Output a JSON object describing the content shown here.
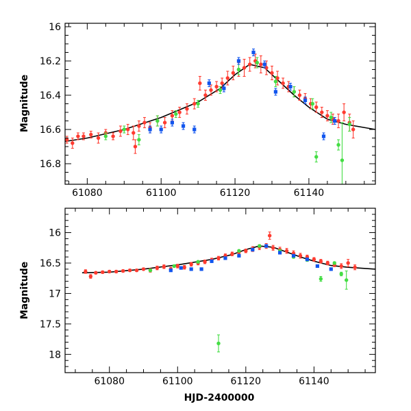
{
  "colors": {
    "red": "#ff3b30",
    "green": "#44dd44",
    "blue": "#1155ee",
    "model": "#000000",
    "frame": "#000000"
  },
  "chart_data": [
    {
      "type": "scatter",
      "panel": "top",
      "xlabel": "",
      "ylabel": "Magnitude",
      "xlim": [
        61074,
        61158
      ],
      "ylim": [
        16.92,
        15.98
      ],
      "y_inverted": true,
      "xticks": [
        61080,
        61100,
        61120,
        61140
      ],
      "yticks": [
        16,
        16.2,
        16.4,
        16.6,
        16.8
      ],
      "ytick_labels": [
        "16",
        "16.2",
        "16.4",
        "16.6",
        "16.8"
      ],
      "model": {
        "x": [
          61074,
          61080,
          61090,
          61100,
          61110,
          61116,
          61120,
          61124,
          61128,
          61132,
          61136,
          61140,
          61145,
          61150,
          61158
        ],
        "y": [
          16.67,
          16.65,
          16.6,
          16.53,
          16.44,
          16.36,
          16.28,
          16.22,
          16.24,
          16.32,
          16.4,
          16.47,
          16.54,
          16.57,
          16.6
        ]
      },
      "series": [
        {
          "name": "red",
          "x": [
            61074.5,
            61076,
            61077.5,
            61079,
            61081,
            61083,
            61085,
            61087,
            61089,
            61091,
            61092.5,
            61094,
            61095.5,
            61097,
            61099,
            61101,
            61103,
            61105,
            61107,
            61109,
            61110.5,
            61112,
            61113.5,
            61115,
            61116.5,
            61118,
            61119.5,
            61121,
            61122.5,
            61124,
            61125.5,
            61127,
            61128.5,
            61130,
            61131.5,
            61133,
            61134.5,
            61136,
            61137.5,
            61139,
            61140.5,
            61142,
            61143.5,
            61145,
            61146.5,
            61148,
            61149.5,
            61151,
            61152,
            61093
          ],
          "y": [
            16.66,
            16.68,
            16.64,
            16.64,
            16.63,
            16.65,
            16.62,
            16.64,
            16.61,
            16.6,
            16.62,
            16.58,
            16.56,
            16.59,
            16.55,
            16.56,
            16.52,
            16.5,
            16.48,
            16.45,
            16.33,
            16.4,
            16.37,
            16.35,
            16.33,
            16.3,
            16.27,
            16.25,
            16.24,
            16.22,
            16.2,
            16.22,
            16.24,
            16.27,
            16.3,
            16.33,
            16.35,
            16.38,
            16.4,
            16.42,
            16.45,
            16.47,
            16.5,
            16.52,
            16.54,
            16.55,
            16.5,
            16.56,
            16.6,
            16.7
          ],
          "err": [
            0.02,
            0.03,
            0.02,
            0.02,
            0.02,
            0.03,
            0.02,
            0.02,
            0.03,
            0.03,
            0.04,
            0.03,
            0.03,
            0.03,
            0.03,
            0.03,
            0.03,
            0.03,
            0.03,
            0.03,
            0.04,
            0.03,
            0.03,
            0.03,
            0.03,
            0.04,
            0.04,
            0.04,
            0.05,
            0.04,
            0.04,
            0.05,
            0.04,
            0.04,
            0.04,
            0.03,
            0.03,
            0.03,
            0.03,
            0.03,
            0.03,
            0.03,
            0.03,
            0.03,
            0.03,
            0.04,
            0.05,
            0.05,
            0.05,
            0.04
          ]
        },
        {
          "name": "green",
          "x": [
            61085,
            61090,
            61094,
            61099,
            61104,
            61110,
            61116,
            61121,
            61126,
            61131,
            61136,
            61141,
            61142,
            61146,
            61148,
            61149,
            61151
          ],
          "y": [
            16.64,
            16.6,
            16.66,
            16.55,
            16.51,
            16.45,
            16.37,
            16.25,
            16.21,
            16.32,
            16.38,
            16.45,
            16.76,
            16.53,
            16.69,
            16.78,
            16.57
          ],
          "err": [
            0.02,
            0.02,
            0.03,
            0.03,
            0.02,
            0.02,
            0.02,
            0.03,
            0.03,
            0.03,
            0.03,
            0.03,
            0.03,
            0.03,
            0.03,
            0.22,
            0.04
          ]
        },
        {
          "name": "blue",
          "x": [
            61097,
            61100,
            61103,
            61106,
            61109,
            61113,
            61117,
            61121,
            61125,
            61128,
            61131,
            61135,
            61139,
            61144,
            61147
          ],
          "y": [
            16.6,
            16.6,
            16.56,
            16.58,
            16.6,
            16.33,
            16.36,
            16.2,
            16.15,
            16.22,
            16.38,
            16.35,
            16.43,
            16.64,
            16.55
          ],
          "err": [
            0.02,
            0.02,
            0.02,
            0.02,
            0.02,
            0.02,
            0.02,
            0.02,
            0.02,
            0.02,
            0.02,
            0.02,
            0.02,
            0.02,
            0.02
          ]
        }
      ]
    },
    {
      "type": "scatter",
      "panel": "bottom",
      "xlabel": "HJD-2400000",
      "ylabel": "Magnitude",
      "xlim": [
        61067,
        61158
      ],
      "ylim": [
        18.3,
        15.6
      ],
      "y_inverted": true,
      "xticks": [
        61080,
        61100,
        61120,
        61140
      ],
      "yticks": [
        16,
        16.5,
        17,
        17.5,
        18
      ],
      "ytick_labels": [
        "16",
        "16.5",
        "17",
        "17.5",
        "18"
      ],
      "model": {
        "x": [
          61072,
          61080,
          61090,
          61100,
          61110,
          61116,
          61120,
          61124,
          61128,
          61132,
          61136,
          61140,
          61145,
          61150,
          61158
        ],
        "y": [
          16.66,
          16.65,
          16.6,
          16.53,
          16.44,
          16.36,
          16.28,
          16.22,
          16.24,
          16.32,
          16.4,
          16.47,
          16.54,
          16.57,
          16.6
        ]
      },
      "series": [
        {
          "name": "red",
          "x": [
            61073,
            61074.5,
            61076,
            61078,
            61080,
            61082,
            61084,
            61086,
            61088,
            61090,
            61092,
            61094,
            61096,
            61098,
            61100,
            61102,
            61104,
            61106,
            61108,
            61110,
            61112,
            61114,
            61116,
            61118,
            61120,
            61122,
            61124,
            61126,
            61127,
            61128,
            61130,
            61132,
            61134,
            61136,
            61138,
            61140,
            61142,
            61144,
            61146,
            61148,
            61150,
            61152
          ],
          "y": [
            16.64,
            16.72,
            16.66,
            16.65,
            16.64,
            16.64,
            16.63,
            16.62,
            16.62,
            16.6,
            16.62,
            16.58,
            16.56,
            16.6,
            16.55,
            16.57,
            16.52,
            16.5,
            16.48,
            16.45,
            16.42,
            16.38,
            16.35,
            16.32,
            16.3,
            16.27,
            16.24,
            16.22,
            16.05,
            16.25,
            16.28,
            16.3,
            16.34,
            16.38,
            16.4,
            16.44,
            16.47,
            16.5,
            16.53,
            16.55,
            16.5,
            16.57
          ],
          "err": [
            0.03,
            0.03,
            0.02,
            0.02,
            0.02,
            0.02,
            0.02,
            0.02,
            0.02,
            0.02,
            0.03,
            0.03,
            0.03,
            0.03,
            0.03,
            0.03,
            0.03,
            0.03,
            0.03,
            0.03,
            0.03,
            0.03,
            0.03,
            0.03,
            0.03,
            0.04,
            0.04,
            0.04,
            0.06,
            0.04,
            0.04,
            0.04,
            0.04,
            0.04,
            0.03,
            0.03,
            0.03,
            0.03,
            0.03,
            0.04,
            0.06,
            0.04
          ]
        },
        {
          "name": "green",
          "x": [
            61092,
            61099,
            61106,
            61112,
            61118,
            61124,
            61130,
            61134,
            61138,
            61142,
            61146,
            61148,
            61149.5
          ],
          "y": [
            16.62,
            16.55,
            16.48,
            17.82,
            16.3,
            16.22,
            16.3,
            16.4,
            16.45,
            16.76,
            16.5,
            16.68,
            16.78
          ],
          "err": [
            0.02,
            0.02,
            0.02,
            0.14,
            0.02,
            0.02,
            0.02,
            0.02,
            0.02,
            0.04,
            0.02,
            0.03,
            0.15
          ]
        },
        {
          "name": "blue",
          "x": [
            61098,
            61101,
            61104,
            61107,
            61110,
            61114,
            61118,
            61122,
            61126,
            61130,
            61134,
            61138,
            61141,
            61145
          ],
          "y": [
            16.62,
            16.58,
            16.6,
            16.6,
            16.47,
            16.42,
            16.38,
            16.28,
            16.22,
            16.33,
            16.38,
            16.44,
            16.55,
            16.6
          ],
          "err": [
            0.02,
            0.02,
            0.02,
            0.02,
            0.02,
            0.02,
            0.02,
            0.02,
            0.02,
            0.02,
            0.02,
            0.02,
            0.02,
            0.02
          ]
        }
      ]
    }
  ]
}
